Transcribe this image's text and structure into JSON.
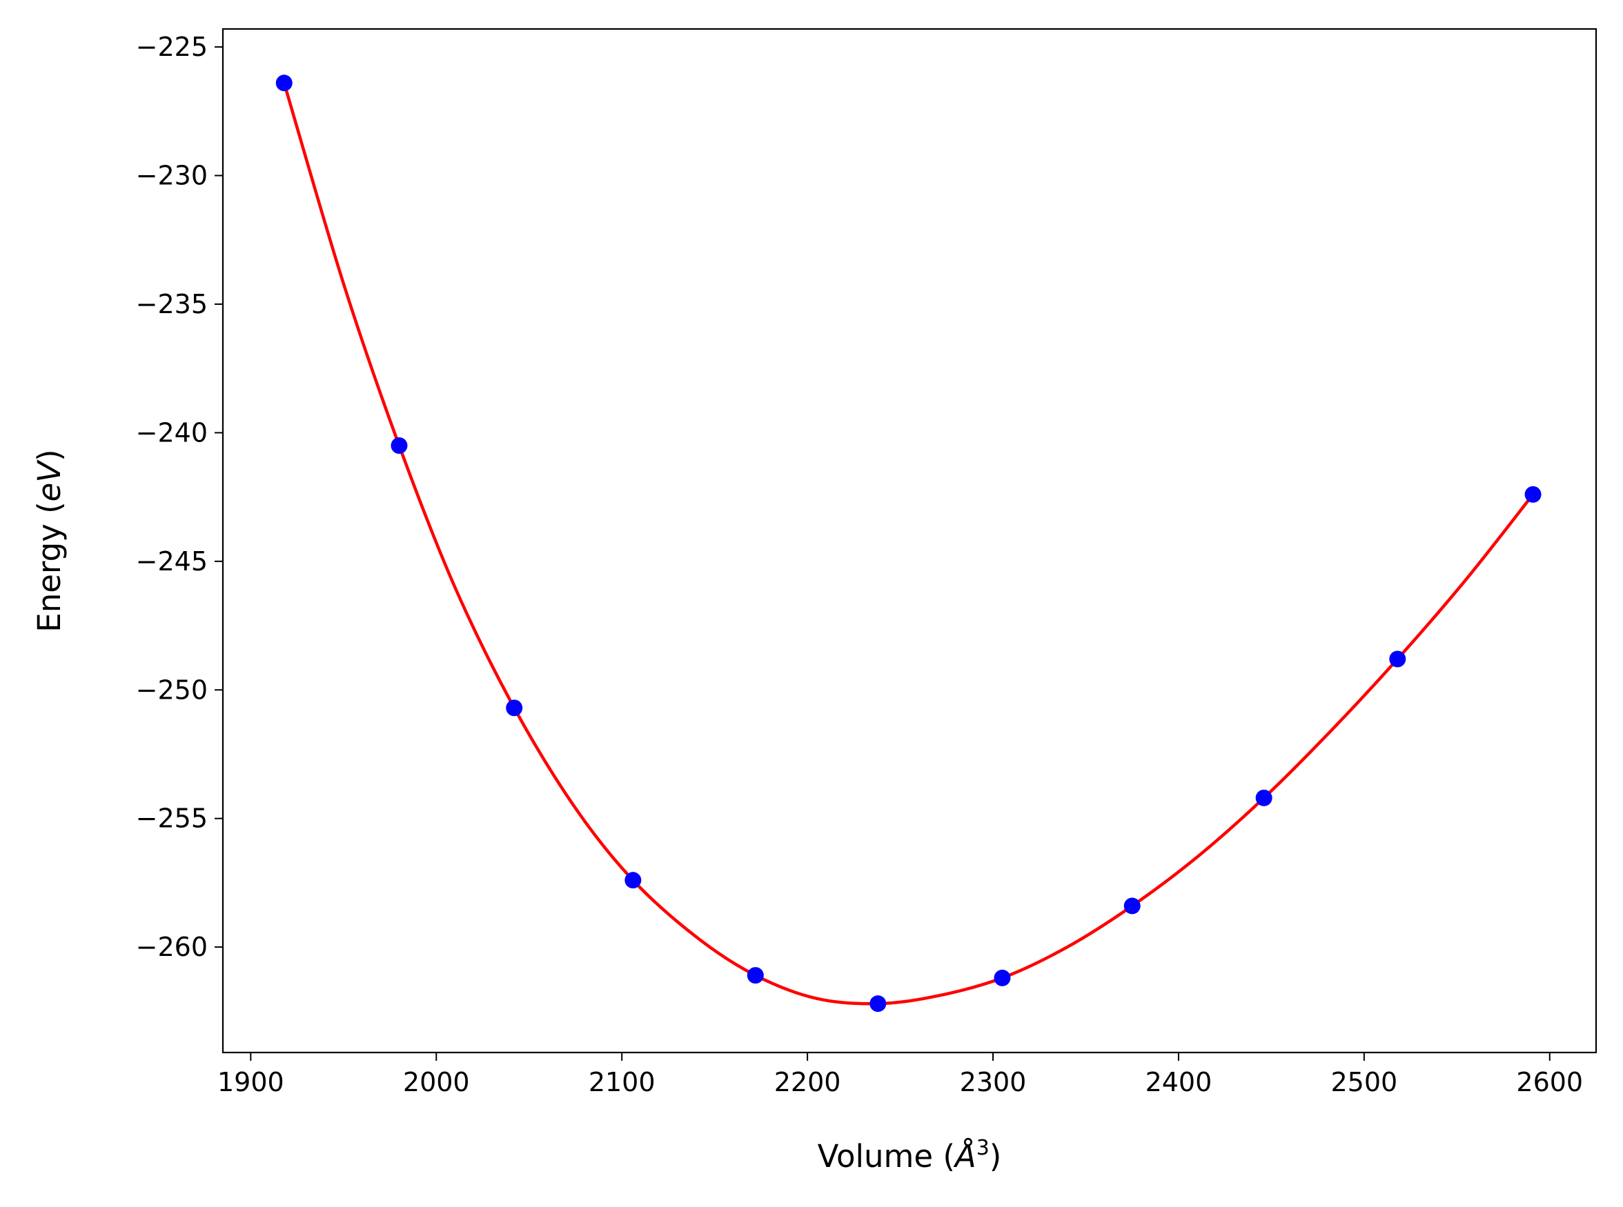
{
  "chart_data": {
    "type": "line",
    "title": "",
    "xlabel": {
      "prefix": "Volume (",
      "symbol": "Å",
      "superscript": "3",
      "suffix": ")"
    },
    "ylabel": {
      "prefix": "Energy (",
      "italic": "eV",
      "suffix": ")"
    },
    "xlim": [
      1885,
      2625
    ],
    "ylim": [
      -264.1,
      -224.3
    ],
    "xticks": [
      1900,
      2000,
      2100,
      2200,
      2300,
      2400,
      2500,
      2600
    ],
    "xtick_labels": [
      "1900",
      "2000",
      "2100",
      "2200",
      "2300",
      "2400",
      "2500",
      "2600"
    ],
    "yticks": [
      -225,
      -230,
      -235,
      -240,
      -245,
      -250,
      -255,
      -260
    ],
    "ytick_labels": [
      "−225",
      "−230",
      "−235",
      "−240",
      "−245",
      "−250",
      "−255",
      "−260"
    ],
    "grid": false,
    "series": [
      {
        "kind": "scatter",
        "color": "#0000ff",
        "x": [
          1918,
          1980,
          2042,
          2106,
          2172,
          2238,
          2305,
          2375,
          2446,
          2518,
          2591
        ],
        "y": [
          -226.4,
          -240.5,
          -250.7,
          -257.4,
          -261.1,
          -262.2,
          -261.2,
          -258.4,
          -254.2,
          -248.8,
          -242.4
        ]
      },
      {
        "kind": "fit-line",
        "color": "#ff0000",
        "x": [
          1918,
          1950,
          1980,
          2010,
          2042,
          2075,
          2106,
          2140,
          2172,
          2205,
          2238,
          2270,
          2305,
          2340,
          2375,
          2410,
          2446,
          2482,
          2518,
          2555,
          2591
        ],
        "y": [
          -226.4,
          -234.2,
          -240.5,
          -246.0,
          -250.7,
          -254.6,
          -257.4,
          -259.6,
          -261.1,
          -262.0,
          -262.2,
          -261.9,
          -261.2,
          -260.0,
          -258.4,
          -256.5,
          -254.2,
          -251.6,
          -248.8,
          -245.7,
          -242.4
        ]
      }
    ]
  }
}
